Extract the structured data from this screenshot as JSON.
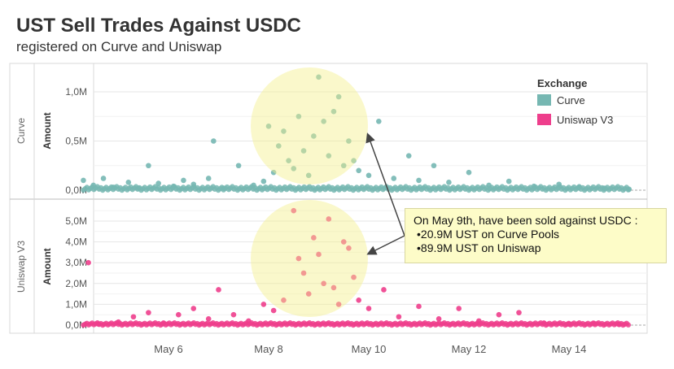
{
  "header": {
    "title": "UST Sell Trades Against USDC",
    "subtitle": "registered on Curve and Uniswap"
  },
  "legend": {
    "title": "Exchange",
    "items": [
      {
        "label": "Curve",
        "color": "#76b7b2"
      },
      {
        "label": "Uniswap V3",
        "color": "#ee3e8c"
      }
    ]
  },
  "annotation": {
    "heading": "On May 9th, have been sold against USDC :",
    "items": [
      "20.9M UST on Curve Pools",
      "89.9M UST on Uniswap"
    ]
  },
  "chart_data": [
    {
      "type": "scatter",
      "panel": "Curve",
      "ylabel": "Amount",
      "ylim": [
        0,
        1.25
      ],
      "yticks": [
        "0,0M",
        "0,5M",
        "1,0M"
      ],
      "xticks": [
        "May 6",
        "May 8",
        "May 10",
        "May 12",
        "May 14"
      ],
      "series": [
        {
          "name": "Curve",
          "color": "#76b7b2",
          "points": [
            [
              4.3,
              0.1
            ],
            [
              4.5,
              0.05
            ],
            [
              4.7,
              0.12
            ],
            [
              4.9,
              0.03
            ],
            [
              5.2,
              0.08
            ],
            [
              5.4,
              0.02
            ],
            [
              5.6,
              0.25
            ],
            [
              5.8,
              0.07
            ],
            [
              6.1,
              0.04
            ],
            [
              6.3,
              0.1
            ],
            [
              6.5,
              0.06
            ],
            [
              6.8,
              0.12
            ],
            [
              6.9,
              0.5
            ],
            [
              7.1,
              0.02
            ],
            [
              7.4,
              0.25
            ],
            [
              7.7,
              0.05
            ],
            [
              7.9,
              0.09
            ],
            [
              8.0,
              0.65
            ],
            [
              8.1,
              0.18
            ],
            [
              8.2,
              0.45
            ],
            [
              8.3,
              0.6
            ],
            [
              8.4,
              0.3
            ],
            [
              8.5,
              0.22
            ],
            [
              8.6,
              0.75
            ],
            [
              8.7,
              0.4
            ],
            [
              8.8,
              0.15
            ],
            [
              8.9,
              0.55
            ],
            [
              9.0,
              1.15
            ],
            [
              9.1,
              0.7
            ],
            [
              9.2,
              0.35
            ],
            [
              9.3,
              0.8
            ],
            [
              9.4,
              0.95
            ],
            [
              9.5,
              0.25
            ],
            [
              9.6,
              0.5
            ],
            [
              9.7,
              0.3
            ],
            [
              9.8,
              0.2
            ],
            [
              10.0,
              0.15
            ],
            [
              10.2,
              0.7
            ],
            [
              10.5,
              0.12
            ],
            [
              10.8,
              0.35
            ],
            [
              11.0,
              0.1
            ],
            [
              11.3,
              0.25
            ],
            [
              11.6,
              0.08
            ],
            [
              12.0,
              0.18
            ],
            [
              12.4,
              0.05
            ],
            [
              12.8,
              0.09
            ],
            [
              13.3,
              0.04
            ],
            [
              13.8,
              0.06
            ],
            [
              14.2,
              0.03
            ],
            [
              14.7,
              0.02
            ],
            [
              15.2,
              0.01
            ]
          ]
        }
      ]
    },
    {
      "type": "scatter",
      "panel": "Uniswap V3",
      "ylabel": "Amount",
      "ylim": [
        0,
        5.8
      ],
      "yticks": [
        "0,0M",
        "1,0M",
        "2,0M",
        "3,0M",
        "4,0M",
        "5,0M"
      ],
      "xticks": [
        "May 6",
        "May 8",
        "May 10",
        "May 12",
        "May 14"
      ],
      "series": [
        {
          "name": "Uniswap V3",
          "color": "#ee3e8c",
          "points": [
            [
              4.4,
              3.0
            ],
            [
              4.6,
              0.05
            ],
            [
              5.0,
              0.15
            ],
            [
              5.3,
              0.4
            ],
            [
              5.6,
              0.6
            ],
            [
              5.9,
              0.1
            ],
            [
              6.2,
              0.5
            ],
            [
              6.5,
              0.8
            ],
            [
              6.8,
              0.3
            ],
            [
              7.0,
              1.7
            ],
            [
              7.3,
              0.5
            ],
            [
              7.6,
              0.2
            ],
            [
              7.9,
              1.0
            ],
            [
              8.1,
              0.7
            ],
            [
              8.3,
              1.2
            ],
            [
              8.5,
              5.5
            ],
            [
              8.6,
              3.2
            ],
            [
              8.7,
              2.5
            ],
            [
              8.8,
              1.5
            ],
            [
              8.9,
              4.2
            ],
            [
              9.0,
              3.4
            ],
            [
              9.1,
              2.0
            ],
            [
              9.2,
              5.1
            ],
            [
              9.3,
              1.8
            ],
            [
              9.4,
              1.0
            ],
            [
              9.5,
              4.0
            ],
            [
              9.6,
              3.7
            ],
            [
              9.7,
              2.3
            ],
            [
              9.8,
              1.2
            ],
            [
              10.0,
              0.8
            ],
            [
              10.3,
              1.7
            ],
            [
              10.6,
              0.4
            ],
            [
              11.0,
              0.9
            ],
            [
              11.4,
              0.3
            ],
            [
              11.8,
              0.8
            ],
            [
              12.2,
              0.2
            ],
            [
              12.6,
              0.5
            ],
            [
              13.0,
              0.6
            ],
            [
              13.5,
              0.1
            ],
            [
              14.0,
              0.05
            ],
            [
              14.5,
              0.08
            ],
            [
              15.0,
              0.03
            ]
          ]
        }
      ]
    }
  ]
}
